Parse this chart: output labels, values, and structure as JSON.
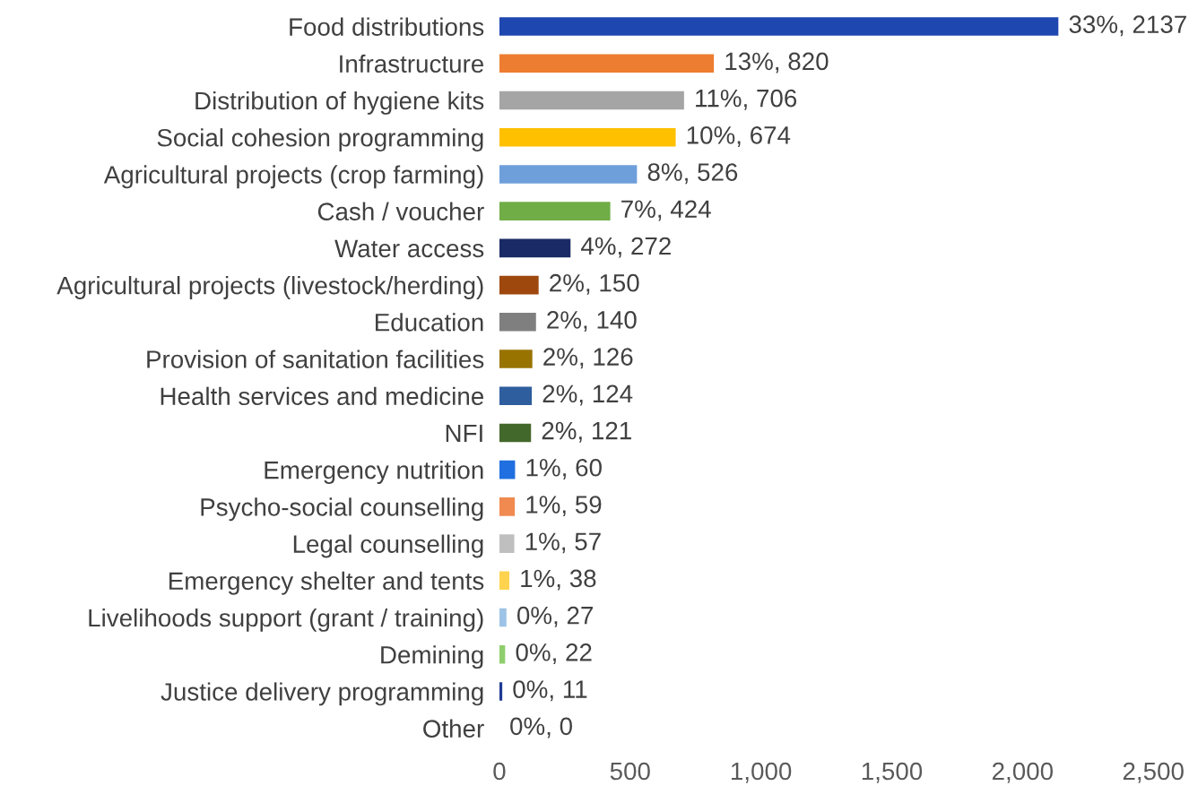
{
  "chart_data": {
    "type": "bar",
    "orientation": "horizontal",
    "categories": [
      "Food distributions",
      "Infrastructure",
      "Distribution of hygiene kits",
      "Social cohesion programming",
      "Agricultural projects (crop farming)",
      "Cash / voucher",
      "Water access",
      "Agricultural projects (livestock/herding)",
      "Education",
      "Provision of sanitation facilities",
      "Health services and medicine",
      "NFI",
      "Emergency nutrition",
      "Psycho-social counselling",
      "Legal counselling",
      "Emergency shelter and tents",
      "Livelihoods support (grant / training)",
      "Demining",
      "Justice delivery programming",
      "Other"
    ],
    "values": [
      2137,
      820,
      706,
      674,
      526,
      424,
      272,
      150,
      140,
      126,
      124,
      121,
      60,
      59,
      57,
      38,
      27,
      22,
      11,
      0
    ],
    "value_labels": [
      "33%, 2137",
      "13%, 820",
      "11%, 706",
      "10%, 674",
      "8%, 526",
      "7%, 424",
      "4%, 272",
      "2%, 150",
      "2%, 140",
      "2%, 126",
      "2%, 124",
      "2%, 121",
      "1%, 60",
      "1%, 59",
      "1%, 57",
      "1%, 38",
      "0%, 27",
      "0%, 22",
      "0%, 11",
      "0%, 0"
    ],
    "colors": [
      "#1f47b0",
      "#ed7d31",
      "#a5a5a5",
      "#ffc000",
      "#6f9fdb",
      "#70ad47",
      "#1a2a66",
      "#9e480e",
      "#7f7f7f",
      "#997300",
      "#2e5e9e",
      "#43682b",
      "#1f6fe0",
      "#f08a50",
      "#bfbfbf",
      "#ffd34d",
      "#9dc3e6",
      "#8fce6c",
      "#1f3a93",
      "#ffffff"
    ],
    "xlim": [
      0,
      2500
    ],
    "xticks": [
      0,
      {
        "value": 500,
        "label": "500"
      },
      {
        "value": 1000,
        "label": "1,000"
      },
      {
        "value": 1500,
        "label": "1,500"
      },
      {
        "value": 2000,
        "label": "2,000"
      },
      {
        "value": 2500,
        "label": "2,500"
      }
    ],
    "grid": false,
    "legend": false
  }
}
